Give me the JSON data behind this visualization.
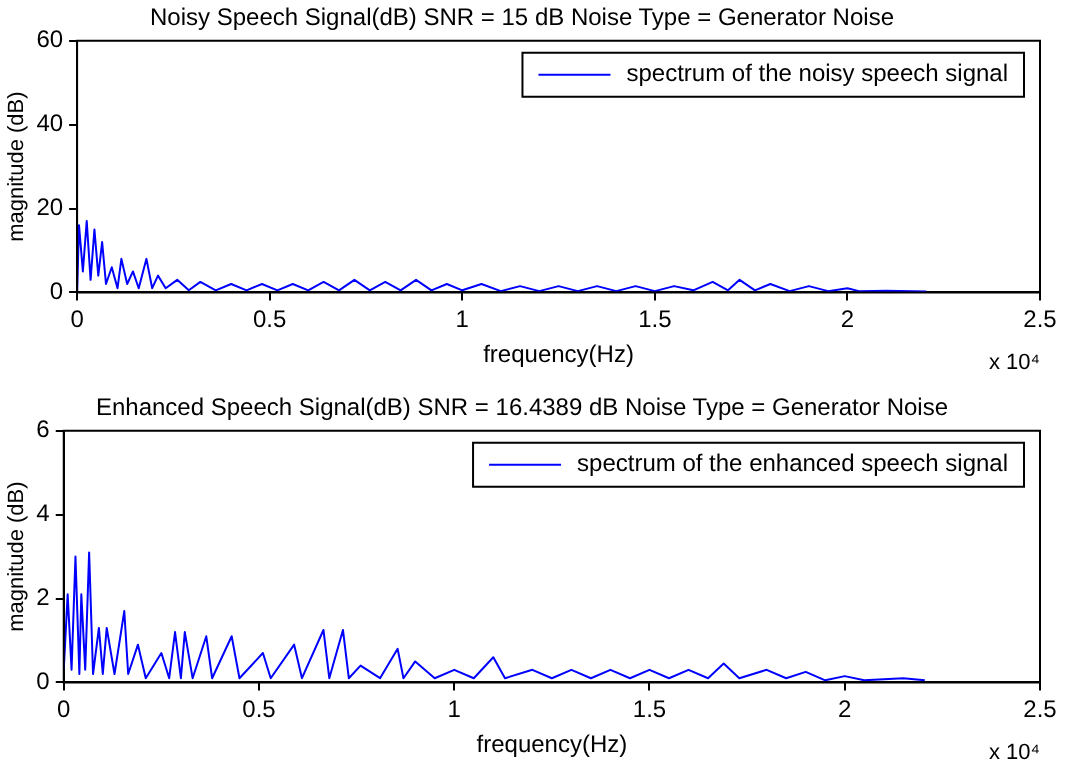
{
  "chart_data": [
    {
      "type": "line",
      "title": "Noisy Speech Signal(dB) SNR = 15 dB Noise Type = Generator Noise",
      "xlabel": "frequency(Hz)",
      "ylabel": "magnitude (dB)",
      "legend": "top right",
      "grid": false,
      "marker": "none",
      "xlim": [
        0,
        2.5
      ],
      "xticks": [
        0,
        0.5,
        1,
        1.5,
        2,
        2.5
      ],
      "ylim": [
        0,
        60
      ],
      "yticks": [
        0,
        20,
        40,
        60
      ],
      "annotations": [
        "x 10⁴"
      ],
      "x": [
        0,
        0.005,
        0.015,
        0.025,
        0.035,
        0.045,
        0.055,
        0.065,
        0.075,
        0.09,
        0.105,
        0.115,
        0.13,
        0.145,
        0.16,
        0.18,
        0.195,
        0.21,
        0.23,
        0.26,
        0.29,
        0.32,
        0.36,
        0.4,
        0.44,
        0.48,
        0.52,
        0.56,
        0.6,
        0.64,
        0.68,
        0.72,
        0.76,
        0.8,
        0.84,
        0.88,
        0.92,
        0.96,
        1,
        1.05,
        1.1,
        1.15,
        1.2,
        1.25,
        1.3,
        1.35,
        1.4,
        1.45,
        1.5,
        1.55,
        1.6,
        1.65,
        1.69,
        1.72,
        1.76,
        1.8,
        1.85,
        1.9,
        1.95,
        2,
        2.03,
        2.1,
        2.205
      ],
      "series": [
        {
          "name": "spectrum of the noisy speech signal",
          "color": "#0000ff",
          "values": [
            0,
            16,
            5,
            17,
            3,
            15,
            4,
            12,
            2,
            6,
            1,
            8,
            2,
            5,
            1,
            8,
            1,
            4,
            1,
            3,
            0.5,
            2.5,
            0.5,
            2,
            0.5,
            2,
            0.5,
            2,
            0.5,
            2.5,
            0.5,
            3,
            0.5,
            2.5,
            0.5,
            3,
            0.5,
            2,
            0.5,
            2,
            0.3,
            1.5,
            0.3,
            1.5,
            0.3,
            1.5,
            0.3,
            1.5,
            0.3,
            1.5,
            0.5,
            2.5,
            0.5,
            3,
            0.5,
            2,
            0.3,
            1.5,
            0.3,
            1,
            0.3,
            0.4,
            0.2
          ]
        }
      ]
    },
    {
      "type": "line",
      "title": "Enhanced Speech Signal(dB) SNR = 16.4389 dB Noise Type = Generator Noise",
      "xlabel": "frequency(Hz)",
      "ylabel": "magnitude (dB)",
      "legend": "top right",
      "grid": false,
      "marker": "none",
      "xlim": [
        0,
        2.5
      ],
      "xticks": [
        0,
        0.5,
        1,
        1.5,
        2,
        2.5
      ],
      "ylim": [
        0,
        6
      ],
      "yticks": [
        0,
        2,
        4,
        6
      ],
      "annotations": [
        "x 10⁴"
      ],
      "x": [
        0,
        0.01,
        0.02,
        0.03,
        0.04,
        0.045,
        0.055,
        0.065,
        0.075,
        0.09,
        0.1,
        0.11,
        0.13,
        0.155,
        0.165,
        0.19,
        0.21,
        0.25,
        0.27,
        0.285,
        0.3,
        0.31,
        0.33,
        0.365,
        0.38,
        0.43,
        0.45,
        0.51,
        0.53,
        0.59,
        0.61,
        0.665,
        0.68,
        0.715,
        0.73,
        0.76,
        0.81,
        0.855,
        0.87,
        0.9,
        0.95,
        1,
        1.05,
        1.1,
        1.13,
        1.2,
        1.25,
        1.3,
        1.35,
        1.4,
        1.45,
        1.5,
        1.55,
        1.6,
        1.65,
        1.69,
        1.73,
        1.8,
        1.85,
        1.9,
        1.95,
        2,
        2.05,
        2.15,
        2.205
      ],
      "series": [
        {
          "name": "spectrum of the enhanced speech signal",
          "color": "#0000ff",
          "values": [
            0.3,
            2.1,
            0.3,
            3.0,
            0.2,
            2.1,
            0.3,
            3.1,
            0.2,
            1.3,
            0.2,
            1.3,
            0.2,
            1.7,
            0.2,
            0.9,
            0.1,
            0.7,
            0.1,
            1.2,
            0.1,
            1.2,
            0.1,
            1.1,
            0.1,
            1.1,
            0.1,
            0.7,
            0.1,
            0.9,
            0.1,
            1.25,
            0.1,
            1.25,
            0.1,
            0.4,
            0.1,
            0.8,
            0.1,
            0.5,
            0.1,
            0.3,
            0.1,
            0.6,
            0.1,
            0.3,
            0.1,
            0.3,
            0.1,
            0.3,
            0.1,
            0.3,
            0.1,
            0.3,
            0.1,
            0.45,
            0.1,
            0.3,
            0.1,
            0.25,
            0.05,
            0.15,
            0.05,
            0.1,
            0.05
          ]
        }
      ]
    }
  ]
}
